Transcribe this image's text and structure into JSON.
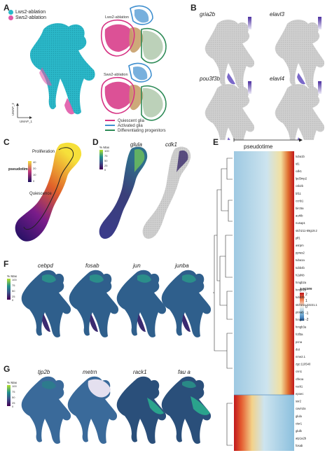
{
  "panels": {
    "A": {
      "letter": "A",
      "legend": [
        "Lws2-ablation",
        "Sws2-ablation"
      ],
      "sub_labels": [
        "Lws2-ablation",
        "Sws2-ablation"
      ],
      "umap_axes": [
        "UMAP_1",
        "UMAP_2"
      ],
      "cluster_legend": [
        "Quiescent glia",
        "Activated glia",
        "Differentiating progenitors"
      ],
      "colors": {
        "lws2": "#2bb8c9",
        "sws2": "#e05aa8",
        "quiescent": "#d63384",
        "activated": "#3f8fcf",
        "differentiating": "#2e8b57"
      }
    },
    "B": {
      "letter": "B",
      "genes": [
        "gria2b",
        "elavl3",
        "pou3f3b",
        "elavl4"
      ]
    },
    "C": {
      "letter": "C",
      "labels": [
        "Proliferation",
        "pseudotime",
        "Quiescence"
      ],
      "scale": [
        "40",
        "20",
        "10",
        "0"
      ]
    },
    "D": {
      "letter": "D",
      "genes": [
        "glula",
        "cdk1"
      ],
      "scale_title": "% Max",
      "scale": [
        "100",
        "75",
        "50",
        "25",
        "0"
      ]
    },
    "E": {
      "letter": "E",
      "axis_label": "pseudotime",
      "zscore_title": "z-score",
      "zscore_ticks": [
        "2",
        "1",
        "0",
        "-1",
        "-2"
      ],
      "genes": [
        "tuba1b",
        "id1",
        "cdk1",
        "lpd3mp2",
        "csk2b",
        "bf11",
        "ccnb1",
        "birc5a",
        "aurkb",
        "nusap1",
        "stch211-69g19.2",
        "plf1",
        "asrpm",
        "ppras2",
        "tuba1a",
        "tubb4b",
        "h2afvb",
        "hmgb2a",
        "hmgb2b",
        "tubb2b",
        "stch211-22221.1",
        "ptmab",
        "hmgn2",
        "hmgb3a",
        "h3f3a",
        "pcna",
        "dut",
        "nme2.1",
        "zgc:110540",
        "cnn1",
        "chkoa",
        "rack1",
        "epoec",
        "ssr2",
        "cavin2a",
        "glula",
        "ctsr1",
        "glulb",
        "atp1a2b",
        "fosab"
      ]
    },
    "F": {
      "letter": "F",
      "genes": [
        "cebpd",
        "fosab",
        "jun",
        "junba"
      ],
      "scale_title": "% Max",
      "scale": [
        "100",
        "75",
        "50",
        "25",
        "0"
      ]
    },
    "G": {
      "letter": "G",
      "genes": [
        "tjp2b",
        "metrn",
        "rack1",
        "fau a"
      ],
      "scale_title": "% Max",
      "scale": [
        "100",
        "75",
        "50",
        "25",
        "0"
      ]
    }
  }
}
